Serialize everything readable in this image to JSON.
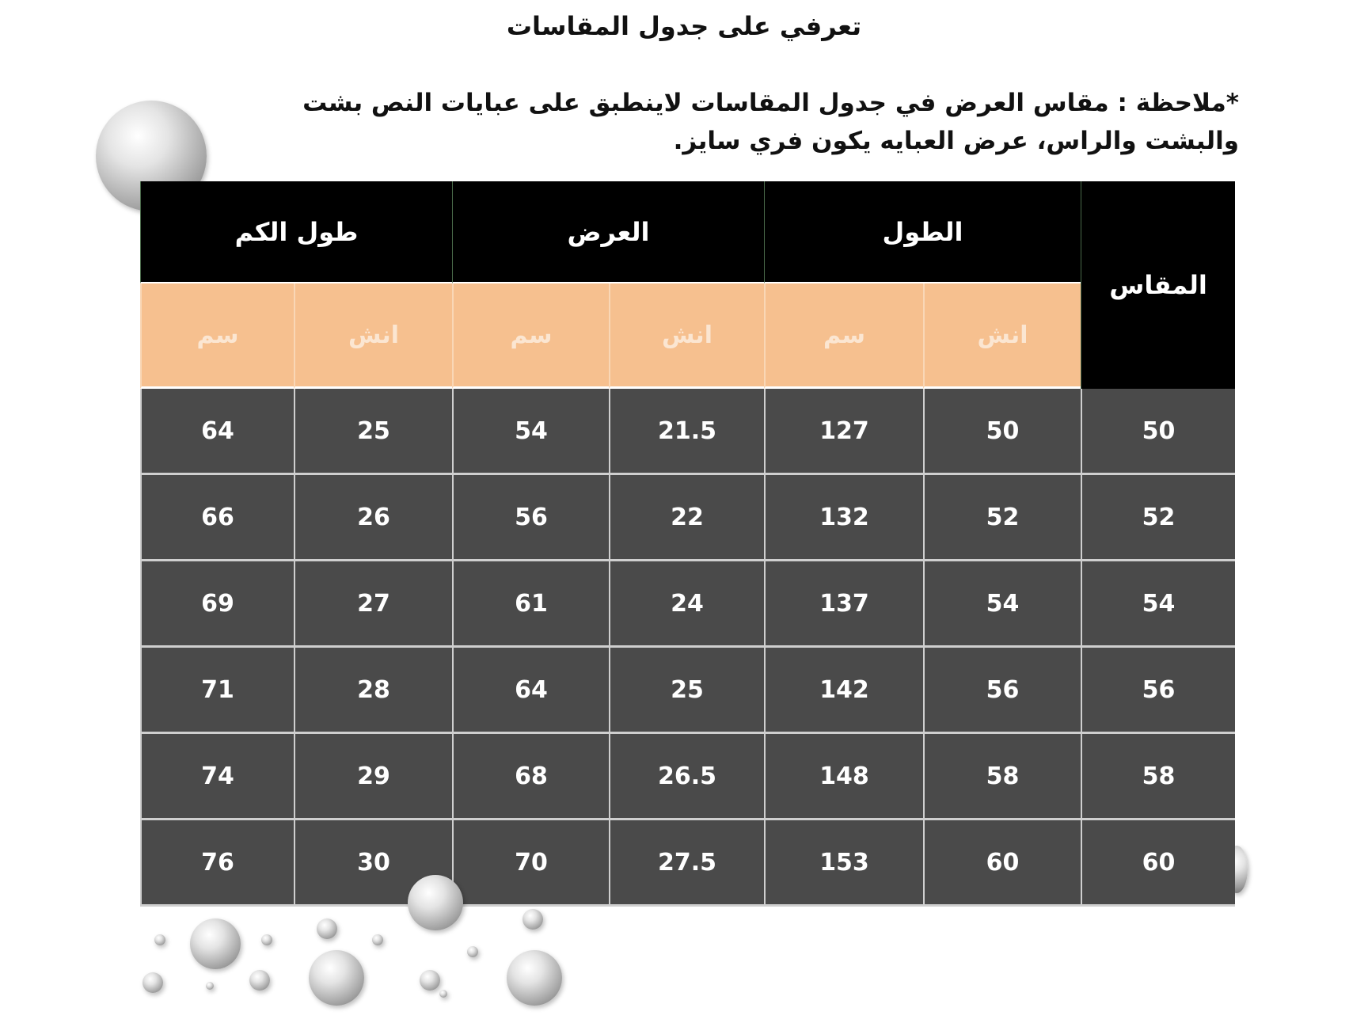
{
  "title": "تعرفي على جدول المقاسات",
  "note": "*ملاحظة : مقاس العرض في جدول المقاسات لاينطبق على عبايات النص بشت والبشت والراس، عرض العبايه يكون فري سايز.",
  "colors": {
    "header_bg": "#000000",
    "unit_bg": "#f6c08f",
    "cell_bg": "#4a4a4a"
  },
  "table": {
    "size_header": "المقاس",
    "groups": [
      "الطول",
      "العرض",
      "طول الكم"
    ],
    "units": [
      "انش",
      "سم",
      "انش",
      "سم",
      "انش",
      "سم"
    ],
    "rows": [
      [
        "50",
        "50",
        "127",
        "21.5",
        "54",
        "25",
        "64"
      ],
      [
        "52",
        "52",
        "132",
        "22",
        "56",
        "26",
        "66"
      ],
      [
        "54",
        "54",
        "137",
        "24",
        "61",
        "27",
        "69"
      ],
      [
        "56",
        "56",
        "142",
        "25",
        "64",
        "28",
        "71"
      ],
      [
        "58",
        "58",
        "148",
        "26.5",
        "68",
        "29",
        "74"
      ],
      [
        "60",
        "60",
        "153",
        "27.5",
        "70",
        "30",
        "76"
      ]
    ]
  }
}
